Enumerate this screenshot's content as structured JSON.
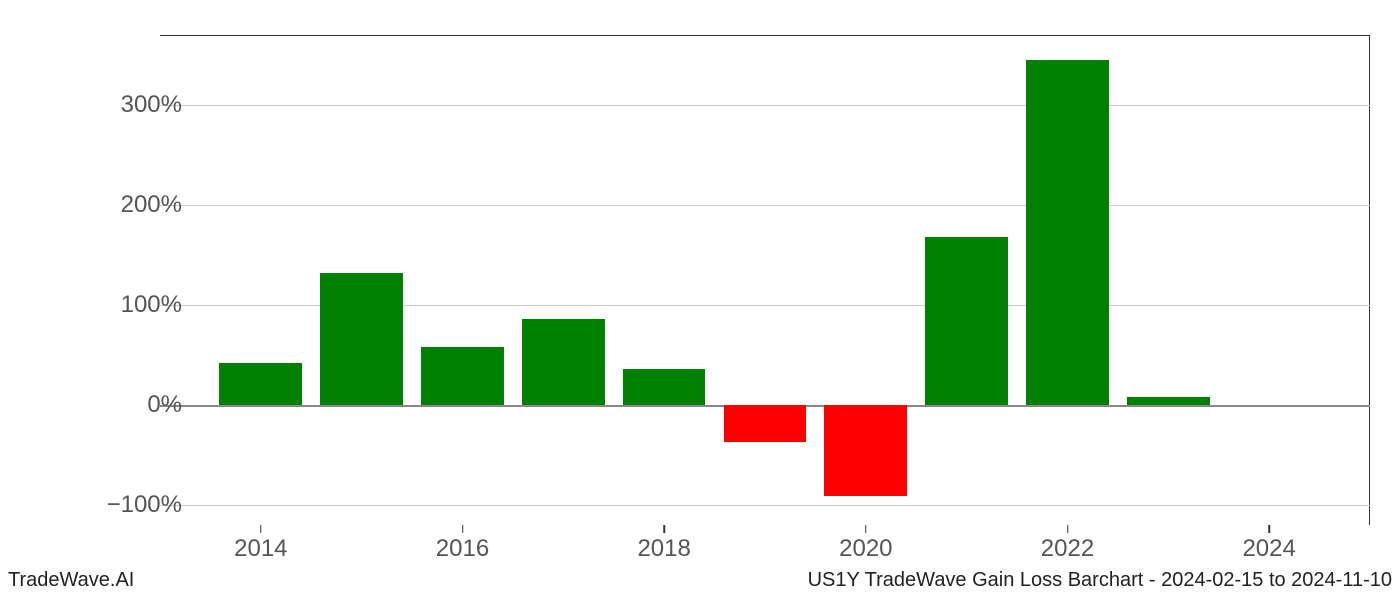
{
  "chart": {
    "type": "bar",
    "background_color": "#ffffff",
    "grid_color": "#cccccc",
    "axis_color": "#333333",
    "tick_label_color": "#555555",
    "tick_fontsize": 24,
    "positive_color": "#008000",
    "negative_color": "#ff0000",
    "ylim": [
      -120,
      370
    ],
    "yticks": [
      -100,
      0,
      100,
      200,
      300
    ],
    "ytick_labels": [
      "−100%",
      "0%",
      "100%",
      "200%",
      "300%"
    ],
    "xlim": [
      2013,
      2025
    ],
    "xticks": [
      2014,
      2016,
      2018,
      2020,
      2022,
      2024
    ],
    "xtick_labels": [
      "2014",
      "2016",
      "2018",
      "2020",
      "2022",
      "2024"
    ],
    "bar_width_years": 0.82,
    "years": [
      2014,
      2015,
      2016,
      2017,
      2018,
      2019,
      2020,
      2021,
      2022,
      2023
    ],
    "values": [
      42,
      132,
      58,
      86,
      36,
      -37,
      -91,
      168,
      345,
      8
    ]
  },
  "footer": {
    "left": "TradeWave.AI",
    "right": "US1Y TradeWave Gain Loss Barchart - 2024-02-15 to 2024-11-10"
  }
}
